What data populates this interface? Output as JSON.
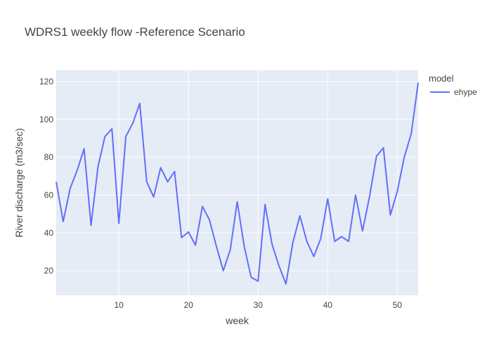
{
  "chart_data": {
    "type": "line",
    "title": "WDRS1 weekly flow -Reference Scenario",
    "xlabel": "week",
    "ylabel": "River discharge (m3/sec)",
    "legend_title": "model",
    "legend_position": "top-right",
    "grid": true,
    "xlim": [
      1,
      53
    ],
    "ylim": [
      7,
      126
    ],
    "x_ticks": [
      10,
      20,
      30,
      40,
      50
    ],
    "y_ticks": [
      20,
      40,
      60,
      80,
      100,
      120
    ],
    "series": [
      {
        "name": "ehype",
        "color": "#636efa",
        "x": [
          1,
          2,
          3,
          4,
          5,
          6,
          7,
          8,
          9,
          10,
          11,
          12,
          13,
          14,
          15,
          16,
          17,
          18,
          19,
          20,
          21,
          22,
          23,
          24,
          25,
          26,
          27,
          28,
          29,
          30,
          31,
          32,
          33,
          34,
          35,
          36,
          37,
          38,
          39,
          40,
          41,
          42,
          43,
          44,
          45,
          46,
          47,
          48,
          49,
          50,
          51,
          52,
          53
        ],
        "y": [
          67,
          46,
          63.5,
          73,
          84.5,
          44,
          75,
          91,
          95,
          45,
          91,
          98,
          108.5,
          67,
          59,
          74.5,
          67,
          72.5,
          37.5,
          40.5,
          33.5,
          54,
          47,
          33,
          20,
          31,
          56.5,
          33,
          16.5,
          14.5,
          55,
          34,
          22.5,
          13,
          35,
          49,
          35.5,
          27.5,
          37,
          58,
          35.5,
          38,
          35.5,
          60,
          41,
          59,
          80.5,
          85,
          49.5,
          62,
          80,
          92.5,
          119.5
        ]
      }
    ]
  },
  "style": {
    "plot_bg": "#e5ecf6",
    "grid_color": "#ffffff",
    "text_color": "#444444",
    "title_color": "#444444"
  }
}
